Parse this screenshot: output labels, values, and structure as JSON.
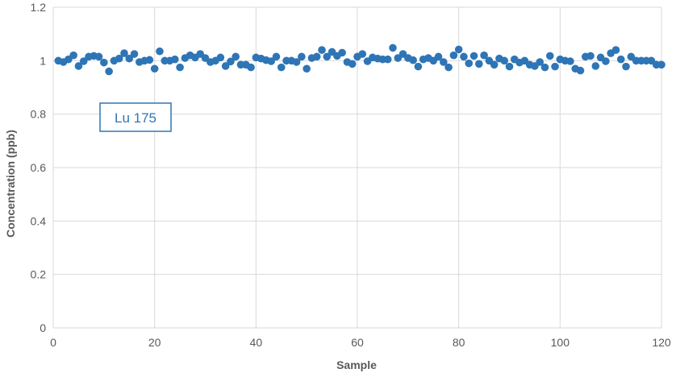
{
  "chart_data": {
    "type": "scatter",
    "title": "",
    "xlabel": "Sample",
    "ylabel": "Concentration (ppb)",
    "xlim": [
      0,
      120
    ],
    "ylim": [
      0,
      1.2
    ],
    "x_ticks": [
      "0",
      "20",
      "40",
      "60",
      "80",
      "100",
      "120"
    ],
    "y_ticks": [
      "0",
      "0.2",
      "0.4",
      "0.6",
      "0.8",
      "1",
      "1.2"
    ],
    "grid": true,
    "legend": "none",
    "annotation": "Lu 175",
    "color": "#2e75b6",
    "series": [
      {
        "x": [
          1,
          2,
          3,
          4,
          5,
          6,
          7,
          8,
          9,
          10,
          11,
          12,
          13,
          14,
          15,
          16,
          17,
          18,
          19,
          20,
          21,
          22,
          23,
          24,
          25,
          26,
          27,
          28,
          29,
          30,
          31,
          32,
          33,
          34,
          35,
          36,
          37,
          38,
          39,
          40,
          41,
          42,
          43,
          44,
          45,
          46,
          47,
          48,
          49,
          50,
          51,
          52,
          53,
          54,
          55,
          56,
          57,
          58,
          59,
          60,
          61,
          62,
          63,
          64,
          65,
          66,
          67,
          68,
          69,
          70,
          71,
          72,
          73,
          74,
          75,
          76,
          77,
          78,
          79,
          80,
          81,
          82,
          83,
          84,
          85,
          86,
          87,
          88,
          89,
          90,
          91,
          92,
          93,
          94,
          95,
          96,
          97,
          98,
          99,
          100,
          101,
          102,
          103,
          104,
          105,
          106,
          107,
          108,
          109,
          110,
          111,
          112,
          113,
          114,
          115,
          116,
          117,
          118,
          119,
          120
        ],
        "y": [
          1.0,
          0.995,
          1.005,
          1.02,
          0.98,
          0.998,
          1.015,
          1.018,
          1.015,
          0.993,
          0.96,
          1.0,
          1.008,
          1.028,
          1.008,
          1.025,
          0.995,
          1.0,
          1.003,
          0.97,
          1.035,
          1.0,
          1.0,
          1.005,
          0.975,
          1.01,
          1.02,
          1.012,
          1.025,
          1.01,
          0.995,
          1.0,
          1.012,
          0.98,
          0.997,
          1.015,
          0.985,
          0.985,
          0.975,
          1.012,
          1.008,
          1.002,
          0.998,
          1.015,
          0.975,
          1.0,
          1.0,
          0.995,
          1.015,
          0.97,
          1.01,
          1.015,
          1.04,
          1.015,
          1.033,
          1.018,
          1.03,
          0.995,
          0.988,
          1.015,
          1.025,
          0.998,
          1.012,
          1.008,
          1.005,
          1.005,
          1.048,
          1.01,
          1.025,
          1.01,
          1.002,
          0.978,
          1.005,
          1.01,
          1.0,
          1.015,
          0.995,
          0.975,
          1.02,
          1.042,
          1.015,
          0.99,
          1.018,
          0.988,
          1.02,
          1.0,
          0.985,
          1.008,
          1.0,
          0.978,
          1.005,
          0.993,
          1.0,
          0.985,
          0.98,
          0.995,
          0.975,
          1.018,
          0.978,
          1.005,
          1.0,
          0.998,
          0.97,
          0.963,
          1.015,
          1.018,
          0.98,
          1.012,
          0.998,
          1.028,
          1.04,
          1.005,
          0.978,
          1.015,
          1.0,
          1.0,
          1.0,
          1.0,
          0.985,
          0.985
        ]
      }
    ]
  }
}
